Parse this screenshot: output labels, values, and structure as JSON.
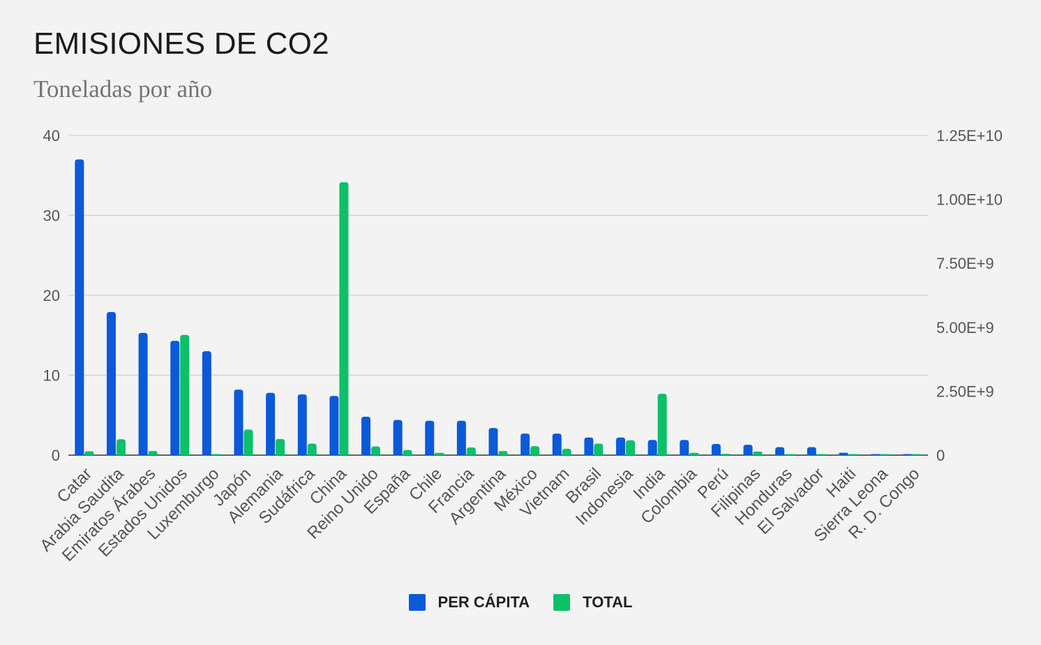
{
  "header": {
    "title": "EMISIONES DE CO2",
    "subtitle": "Toneladas por año"
  },
  "legend": {
    "items": [
      {
        "label": "PER CÁPITA",
        "color": "#0b5ad9"
      },
      {
        "label": "TOTAL",
        "color": "#0cc06a"
      }
    ]
  },
  "chart_data": {
    "type": "bar",
    "title": "EMISIONES DE CO2",
    "subtitle": "Toneladas por año",
    "categories": [
      "Catar",
      "Arabia Saudita",
      "Emiratos Árabes",
      "Estados Unidos",
      "Luxemburgo",
      "Japón",
      "Alemania",
      "Sudáfrica",
      "China",
      "Reino Unido",
      "España",
      "Chile",
      "Francia",
      "Argentina",
      "México",
      "Vietnam",
      "Brasil",
      "Indonesia",
      "India",
      "Colombia",
      "Perú",
      "Filipinas",
      "Honduras",
      "El Salvador",
      "Haiti",
      "Sierra Leona",
      "R. D. Congo"
    ],
    "series": [
      {
        "name": "PER CÁPITA",
        "axis": "left",
        "color": "#0b5ad9",
        "values": [
          37.0,
          17.9,
          15.3,
          14.3,
          13.0,
          8.2,
          7.8,
          7.6,
          7.4,
          4.8,
          4.4,
          4.3,
          4.3,
          3.4,
          2.7,
          2.7,
          2.2,
          2.2,
          1.9,
          1.9,
          1.4,
          1.3,
          1.0,
          1.0,
          0.3,
          0.1,
          0.03
        ]
      },
      {
        "name": "TOTAL",
        "axis": "right",
        "color": "#0cc06a",
        "values": [
          150000000,
          620000000,
          160000000,
          4700000000,
          10000000,
          1000000000,
          630000000,
          450000000,
          10670000000,
          340000000,
          200000000,
          90000000,
          300000000,
          160000000,
          350000000,
          250000000,
          450000000,
          580000000,
          2400000000,
          90000000,
          50000000,
          140000000,
          10000000,
          7000000,
          3000000,
          1000000,
          2000000
        ]
      }
    ],
    "y_left": {
      "min": 0,
      "max": 40,
      "ticks": [
        0,
        10,
        20,
        30,
        40
      ],
      "tick_labels": [
        "0",
        "10",
        "20",
        "30",
        "40"
      ]
    },
    "y_right": {
      "min": 0,
      "max": 12500000000,
      "ticks": [
        0,
        2500000000,
        5000000000,
        7500000000,
        10000000000,
        12500000000
      ],
      "tick_labels": [
        "0",
        "2.50E+9",
        "5.00E+9",
        "7.50E+9",
        "1.00E+10",
        "1.25E+10"
      ]
    },
    "grid": true,
    "legend_position": "bottom"
  }
}
